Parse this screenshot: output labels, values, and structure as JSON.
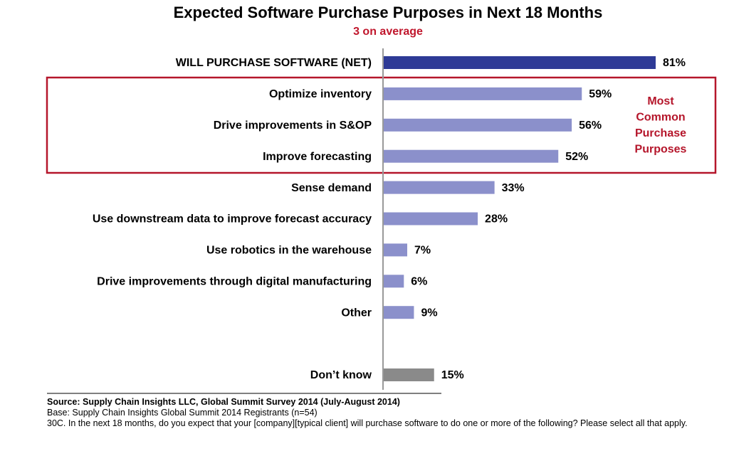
{
  "chart_data": {
    "type": "bar",
    "orientation": "horizontal",
    "title": "Expected Software Purchase Purposes in Next 18 Months",
    "subtitle": "3 on average",
    "categories": [
      "WILL PURCHASE SOFTWARE (NET)",
      "Optimize inventory",
      "Drive improvements in S&OP",
      "Improve forecasting",
      "Sense demand",
      "Use downstream data to improve forecast accuracy",
      "Use robotics in the warehouse",
      "Drive improvements through digital manufacturing",
      "Other",
      null,
      "Don’t know"
    ],
    "values": [
      81,
      59,
      56,
      52,
      33,
      28,
      7,
      6,
      9,
      null,
      15
    ],
    "value_labels": [
      "81%",
      "59%",
      "56%",
      "52%",
      "33%",
      "28%",
      "7%",
      "6%",
      "9%",
      null,
      "15%"
    ],
    "colors": [
      "#2e3a96",
      "#8b90cb",
      "#8b90cb",
      "#8b90cb",
      "#8b90cb",
      "#8b90cb",
      "#8b90cb",
      "#8b90cb",
      "#8b90cb",
      null,
      "#8a8a8a"
    ],
    "annotation": [
      "Most",
      "Common",
      "Purchase",
      "Purposes"
    ],
    "source": "Source: Supply Chain Insights LLC, Global Summit Survey 2014 (July-August 2014)",
    "base": "Base:  Supply Chain Insights Global Summit 2014 Registrants (n=54)",
    "question": "30C. In the next 18 months, do you expect that your [company][typical client] will purchase software to do one or more of the following? Please select all that apply."
  }
}
